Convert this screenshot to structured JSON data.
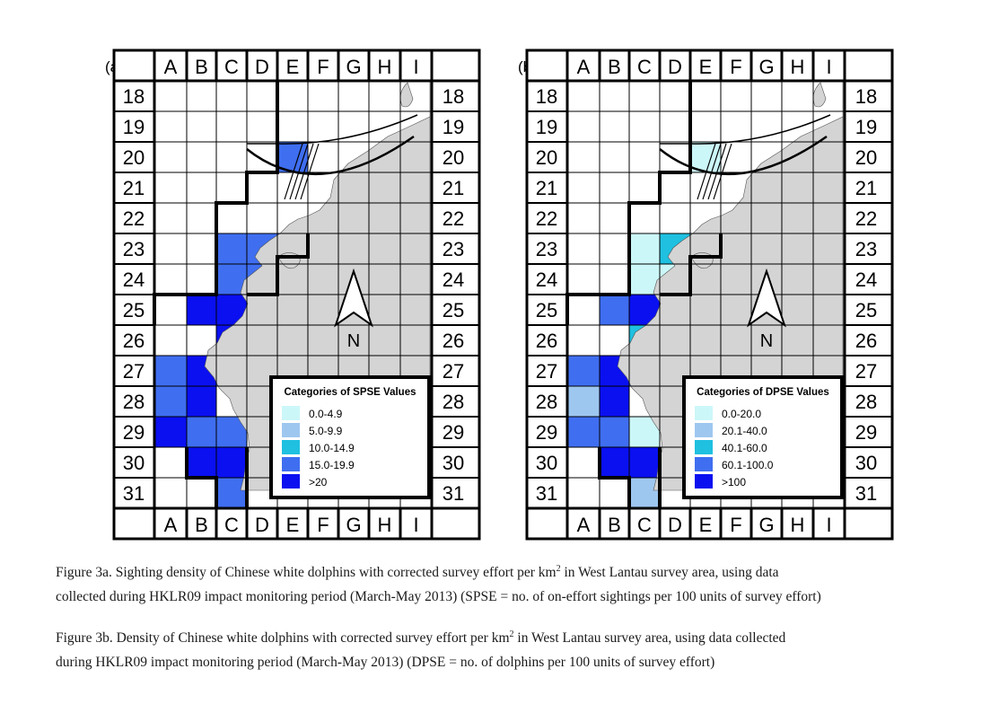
{
  "columns": [
    "A",
    "B",
    "C",
    "D",
    "E",
    "F",
    "G",
    "H",
    "I"
  ],
  "rows": [
    "18",
    "19",
    "20",
    "21",
    "22",
    "23",
    "24",
    "25",
    "26",
    "27",
    "28",
    "29",
    "30",
    "31"
  ],
  "north_label": "N",
  "colors": {
    "land": "#d4d4d4",
    "boundary": "#000000",
    "grid": "#000000",
    "water": "#ffffff"
  },
  "maps": [
    {
      "panel_label": "(a)",
      "legend_title": "Categories of SPSE Values",
      "categories": [
        {
          "label": "0.0-4.9",
          "color": "#ccf7f9"
        },
        {
          "label": "5.0-9.9",
          "color": "#9ec7f0"
        },
        {
          "label": "10.0-14.9",
          "color": "#1fc0e0"
        },
        {
          "label": "15.0-19.9",
          "color": "#3f6ef0"
        },
        {
          "label": ">20",
          "color": "#0a10f0"
        }
      ],
      "cells": [
        {
          "col": "E",
          "row": "20",
          "category": 3
        },
        {
          "col": "C",
          "row": "23",
          "category": 3
        },
        {
          "col": "D",
          "row": "23",
          "category": 3
        },
        {
          "col": "E",
          "row": "23",
          "category": 3
        },
        {
          "col": "C",
          "row": "24",
          "category": 3
        },
        {
          "col": "D",
          "row": "24",
          "category": 3
        },
        {
          "col": "B",
          "row": "25",
          "category": 4
        },
        {
          "col": "C",
          "row": "25",
          "category": 4
        },
        {
          "col": "C",
          "row": "26",
          "category": 4
        },
        {
          "col": "A",
          "row": "27",
          "category": 3
        },
        {
          "col": "B",
          "row": "27",
          "category": 4
        },
        {
          "col": "C",
          "row": "27",
          "category": 3
        },
        {
          "col": "A",
          "row": "28",
          "category": 3
        },
        {
          "col": "B",
          "row": "28",
          "category": 4
        },
        {
          "col": "A",
          "row": "29",
          "category": 4
        },
        {
          "col": "B",
          "row": "29",
          "category": 3
        },
        {
          "col": "C",
          "row": "29",
          "category": 3
        },
        {
          "col": "B",
          "row": "30",
          "category": 4
        },
        {
          "col": "C",
          "row": "30",
          "category": 4
        },
        {
          "col": "C",
          "row": "31",
          "category": 3
        }
      ]
    },
    {
      "panel_label": "(b)",
      "legend_title": "Categories of DPSE Values",
      "categories": [
        {
          "label": "0.0-20.0",
          "color": "#ccf7f9"
        },
        {
          "label": "20.1-40.0",
          "color": "#9ec7f0"
        },
        {
          "label": "40.1-60.0",
          "color": "#1fc0e0"
        },
        {
          "label": "60.1-100.0",
          "color": "#3f6ef0"
        },
        {
          "label": ">100",
          "color": "#0a10f0"
        }
      ],
      "cells": [
        {
          "col": "E",
          "row": "20",
          "category": 0
        },
        {
          "col": "C",
          "row": "23",
          "category": 0
        },
        {
          "col": "D",
          "row": "23",
          "category": 2
        },
        {
          "col": "E",
          "row": "23",
          "category": 0
        },
        {
          "col": "C",
          "row": "24",
          "category": 0
        },
        {
          "col": "D",
          "row": "24",
          "category": 0
        },
        {
          "col": "B",
          "row": "25",
          "category": 3
        },
        {
          "col": "C",
          "row": "25",
          "category": 4
        },
        {
          "col": "C",
          "row": "26",
          "category": 2
        },
        {
          "col": "A",
          "row": "27",
          "category": 3
        },
        {
          "col": "B",
          "row": "27",
          "category": 4
        },
        {
          "col": "C",
          "row": "27",
          "category": 3
        },
        {
          "col": "A",
          "row": "28",
          "category": 1
        },
        {
          "col": "B",
          "row": "28",
          "category": 4
        },
        {
          "col": "A",
          "row": "29",
          "category": 3
        },
        {
          "col": "B",
          "row": "29",
          "category": 3
        },
        {
          "col": "C",
          "row": "29",
          "category": 0
        },
        {
          "col": "B",
          "row": "30",
          "category": 4
        },
        {
          "col": "C",
          "row": "30",
          "category": 4
        },
        {
          "col": "C",
          "row": "31",
          "category": 1
        }
      ]
    }
  ],
  "captions": {
    "a": {
      "line1_pre": "Figure 3a.  Sighting density of Chinese white dolphins with corrected survey effort per km",
      "sup": "2",
      "line1_post": " in West Lantau survey area, using data",
      "line2": "collected during HKLR09 impact monitoring period (March-May 2013) (SPSE = no. of on-effort sightings per 100 units of survey effort)"
    },
    "b": {
      "line1_pre": "Figure 3b.  Density of Chinese white dolphins with corrected survey effort per km",
      "sup": "2",
      "line1_post": " in West Lantau survey area, using data collected",
      "line2": "during HKLR09 impact monitoring period (March-May 2013) (DPSE = no. of dolphins per 100 units of survey effort)"
    }
  }
}
